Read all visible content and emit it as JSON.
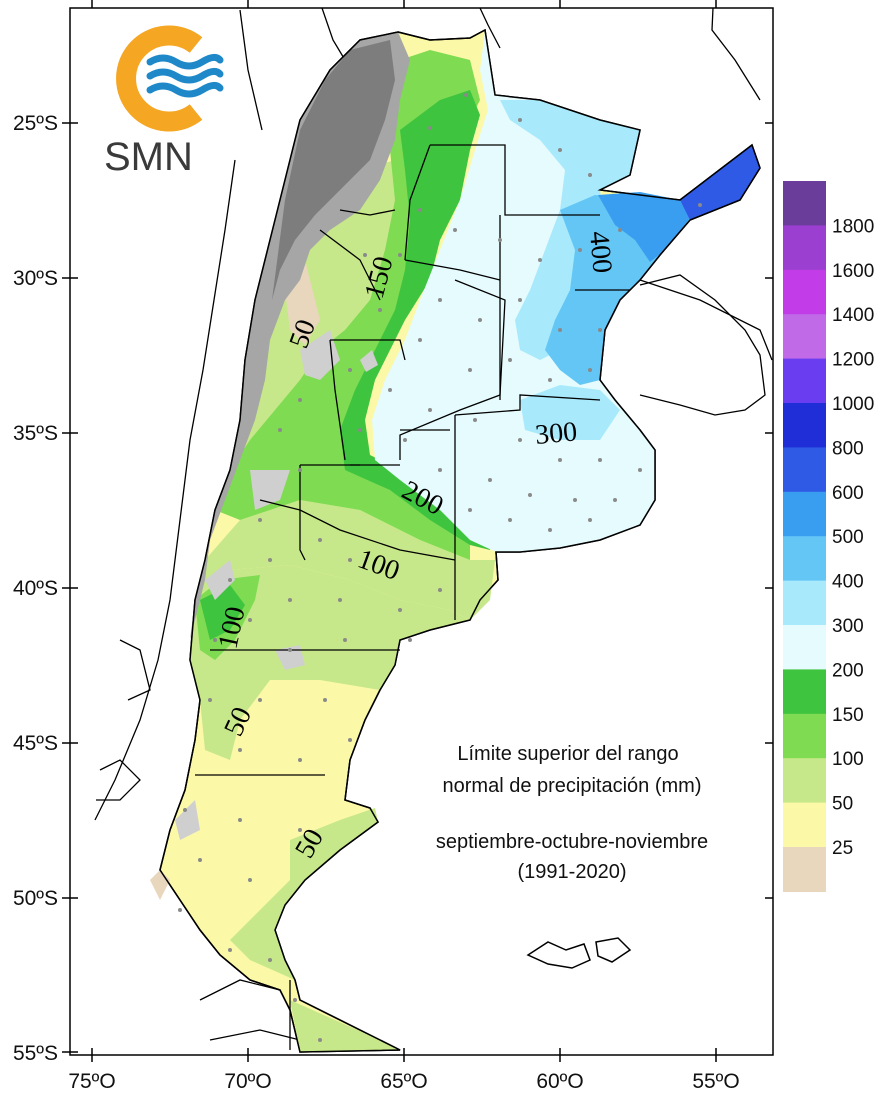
{
  "logo": {
    "text": "SMN",
    "ring_color": "#f5a623",
    "wave_color": "#1e88c8"
  },
  "axes": {
    "lat_ticks": [
      "25ºS",
      "30ºS",
      "35ºS",
      "40ºS",
      "45ºS",
      "50ºS",
      "55ºS"
    ],
    "lon_ticks": [
      "75ºO",
      "70ºO",
      "65ºO",
      "60ºO",
      "55ºO"
    ]
  },
  "colorbar": {
    "labels": [
      "1800",
      "1600",
      "1400",
      "1200",
      "1000",
      "800",
      "600",
      "500",
      "400",
      "300",
      "200",
      "150",
      "100",
      "50",
      "25"
    ],
    "colors": [
      "#6a3d9a",
      "#9b3fd0",
      "#c23ce8",
      "#c06ae8",
      "#6a3ef0",
      "#1f2ed6",
      "#2f5ae6",
      "#3a9ef0",
      "#63c6f5",
      "#a8eafc",
      "#e6fbfd",
      "#3fc43f",
      "#7edb52",
      "#c7e88a",
      "#fbf8a8",
      "#e8d6bd"
    ]
  },
  "contour_labels": [
    "400",
    "300",
    "200",
    "150",
    "100",
    "100",
    "50",
    "50",
    "50"
  ],
  "annotation": {
    "line1": "Límite superior del rango",
    "line2": "normal de precipitación (mm)",
    "line3": "septiembre-octubre-noviembre",
    "line4": "(1991-2020)"
  },
  "map_colors": {
    "andes_dark": "#7d7d7d",
    "andes_mid": "#a6a6a6",
    "andes_light": "#cfcfcf",
    "band_25": "#e8d6bd",
    "band_50": "#fbf8a8",
    "band_100": "#c7e88a",
    "band_150": "#7edb52",
    "band_200": "#3fc43f",
    "band_300": "#e6fbfd",
    "band_400": "#a8eafc",
    "band_500": "#63c6f5",
    "band_600": "#3a9ef0",
    "band_800": "#2f5ae6"
  }
}
